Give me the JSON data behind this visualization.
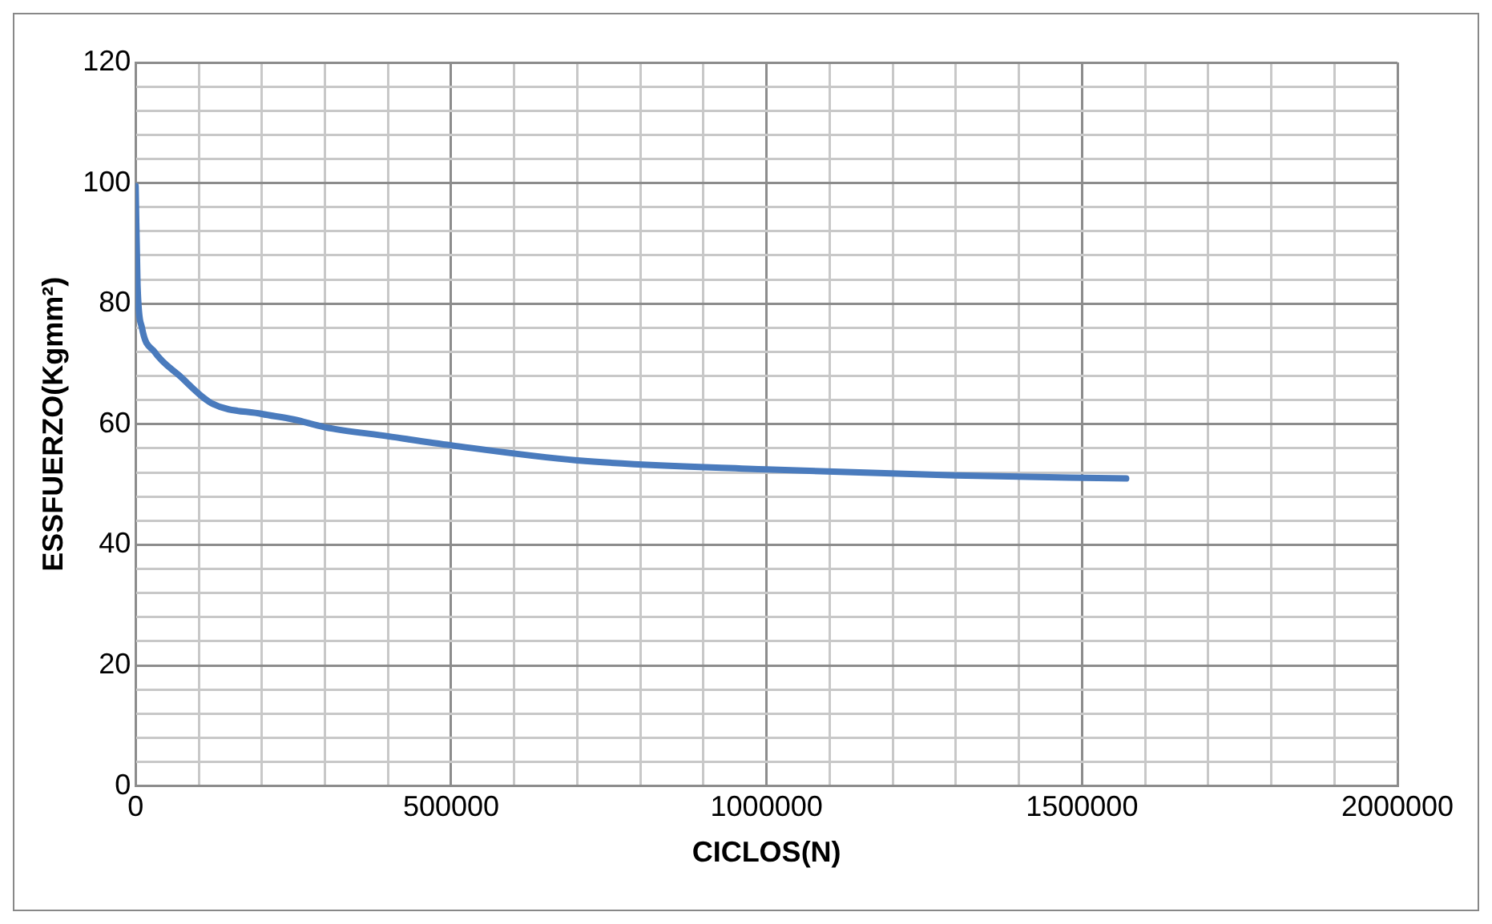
{
  "chart_data": {
    "type": "line",
    "xlabel": "CICLOS(N)",
    "ylabel": "ESSFUERZO(Kgmm²)",
    "series": [
      {
        "color": "#4a7bbd",
        "x": [
          0,
          3000,
          10000,
          30000,
          70000,
          120000,
          200000,
          250000,
          300000,
          400000,
          500000,
          700000,
          1000000,
          1300000,
          1570000
        ],
        "values": [
          99.5,
          83,
          76,
          72,
          68,
          63.5,
          61.7,
          60.8,
          59.5,
          58,
          56.5,
          54,
          52.5,
          51.5,
          51
        ]
      }
    ],
    "xlim": [
      0,
      2000000
    ],
    "xticks": [
      0,
      {
        "value": 100000,
        "label": null
      },
      {
        "value": 200000,
        "label": null
      },
      {
        "value": 300000,
        "label": null
      },
      {
        "value": 400000,
        "label": null
      },
      500000,
      {
        "value": 600000,
        "label": null
      },
      {
        "value": 700000,
        "label": null
      },
      {
        "value": 800000,
        "label": null
      },
      {
        "value": 900000,
        "label": null
      },
      1000000,
      {
        "value": 1100000,
        "label": null
      },
      {
        "value": 1200000,
        "label": null
      },
      {
        "value": 1300000,
        "label": null
      },
      {
        "value": 1400000,
        "label": null
      },
      1500000,
      {
        "value": 1600000,
        "label": null
      },
      {
        "value": 1700000,
        "label": null
      },
      {
        "value": 1800000,
        "label": null
      },
      {
        "value": 1900000,
        "label": null
      },
      2000000
    ],
    "ylim": [
      0,
      120
    ],
    "yticks": [
      0,
      {
        "value": 4,
        "label": null
      },
      {
        "value": 8,
        "label": null
      },
      {
        "value": 12,
        "label": null
      },
      {
        "value": 16,
        "label": null
      },
      20,
      {
        "value": 24,
        "label": null
      },
      {
        "value": 28,
        "label": null
      },
      {
        "value": 32,
        "label": null
      },
      {
        "value": 36,
        "label": null
      },
      40,
      {
        "value": 44,
        "label": null
      },
      {
        "value": 48,
        "label": null
      },
      {
        "value": 52,
        "label": null
      },
      {
        "value": 56,
        "label": null
      },
      60,
      {
        "value": 64,
        "label": null
      },
      {
        "value": 68,
        "label": null
      },
      {
        "value": 72,
        "label": null
      },
      {
        "value": 76,
        "label": null
      },
      80,
      {
        "value": 84,
        "label": null
      },
      {
        "value": 88,
        "label": null
      },
      {
        "value": 92,
        "label": null
      },
      {
        "value": 96,
        "label": null
      },
      100,
      {
        "value": 104,
        "label": null
      },
      {
        "value": 108,
        "label": null
      },
      {
        "value": 112,
        "label": null
      },
      {
        "value": 116,
        "label": null
      },
      120
    ],
    "grid": true,
    "legend": false,
    "marker": "none",
    "line_style": "solid"
  }
}
